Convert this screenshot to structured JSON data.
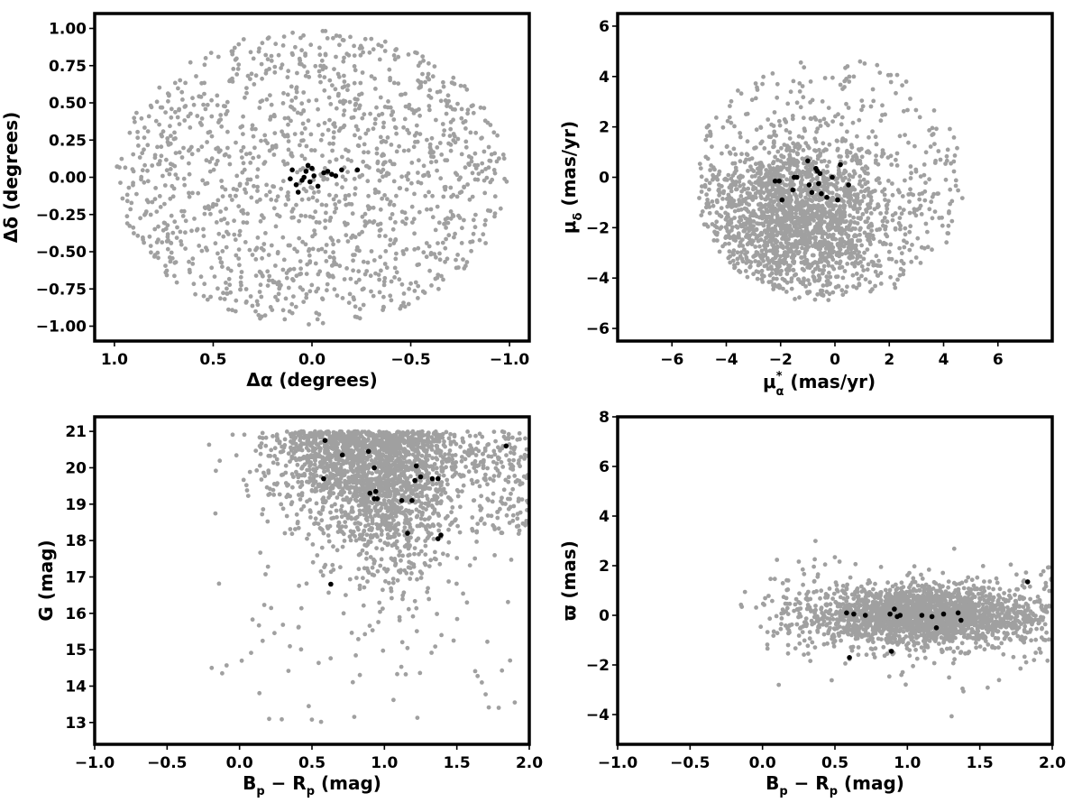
{
  "chart_data": [
    {
      "type": "scatter",
      "panel": "top-left",
      "xlabel": "Δα (degrees)",
      "ylabel": "Δδ (degrees)",
      "xlim": [
        1.1,
        -1.1
      ],
      "ylim": [
        -1.1,
        1.1
      ],
      "x_inverted": true,
      "xticks": [
        1.0,
        0.5,
        0.0,
        -0.5,
        -1.0
      ],
      "xtick_labels": [
        "1.0",
        "0.5",
        "0.0",
        "−0.5",
        "−1.0"
      ],
      "yticks": [
        1.0,
        0.75,
        0.5,
        0.25,
        0.0,
        -0.25,
        -0.5,
        -0.75,
        -1.0
      ],
      "ytick_labels": [
        "1.00",
        "0.75",
        "0.50",
        "0.25",
        "0.00",
        "−0.25",
        "−0.50",
        "−0.75",
        "−1.00"
      ],
      "grid": false,
      "series": [
        {
          "role": "field",
          "color": "#a0a0a0",
          "distribution": {
            "shape": "disk",
            "cx": 0.0,
            "cy": 0.0,
            "rx": 0.99,
            "ry": 0.99,
            "count": 1400,
            "seed": 11
          }
        },
        {
          "role": "members",
          "color": "#000000",
          "points": [
            [
              0.1,
              0.05
            ],
            [
              0.11,
              -0.01
            ],
            [
              0.08,
              -0.05
            ],
            [
              0.07,
              -0.1
            ],
            [
              0.05,
              -0.02
            ],
            [
              0.03,
              0.04
            ],
            [
              0.02,
              0.08
            ],
            [
              0.0,
              0.06
            ],
            [
              -0.01,
              0.01
            ],
            [
              0.01,
              -0.03
            ],
            [
              -0.03,
              -0.06
            ],
            [
              -0.06,
              0.03
            ],
            [
              -0.08,
              0.04
            ],
            [
              -0.1,
              0.02
            ],
            [
              -0.12,
              0.01
            ],
            [
              -0.15,
              0.05
            ],
            [
              -0.23,
              0.05
            ],
            [
              0.04,
              0.0
            ]
          ]
        }
      ]
    },
    {
      "type": "scatter",
      "panel": "top-right",
      "xlabel_main": "μ",
      "xlabel_sub": "α",
      "xlabel_sup": "*",
      "xlabel_unit": " (mas/yr)",
      "ylabel_main": "μ",
      "ylabel_sub": "δ",
      "ylabel_unit": " (mas/yr)",
      "xlim": [
        -8,
        8
      ],
      "ylim": [
        -6.5,
        6.5
      ],
      "xticks": [
        -6,
        -4,
        -2,
        0,
        2,
        4,
        6
      ],
      "xtick_labels": [
        "−6",
        "−4",
        "−2",
        "0",
        "2",
        "4",
        "6"
      ],
      "yticks": [
        -6,
        -4,
        -2,
        0,
        2,
        4,
        6
      ],
      "ytick_labels": [
        "−6",
        "−4",
        "−2",
        "0",
        "2",
        "4",
        "6"
      ],
      "grid": false,
      "series": [
        {
          "role": "field",
          "color": "#a0a0a0",
          "distribution": {
            "shape": "blob",
            "cx": -1.4,
            "cy": -1.6,
            "sx": 1.6,
            "sy": 1.5,
            "xmin": -5.0,
            "xmax": 4.8,
            "ymin": -4.9,
            "ymax": 4.6,
            "count": 2200,
            "seed": 23
          }
        },
        {
          "role": "members",
          "color": "#000000",
          "points": [
            [
              -2.2,
              -0.15
            ],
            [
              -2.05,
              -0.15
            ],
            [
              -1.95,
              -0.9
            ],
            [
              -1.5,
              0.0
            ],
            [
              -1.4,
              0.0
            ],
            [
              -1.55,
              -0.5
            ],
            [
              -1.0,
              0.65
            ],
            [
              -0.95,
              -0.3
            ],
            [
              -0.85,
              -0.6
            ],
            [
              -0.7,
              0.35
            ],
            [
              -0.6,
              -0.25
            ],
            [
              -0.55,
              0.15
            ],
            [
              -0.5,
              -0.65
            ],
            [
              -0.3,
              -0.8
            ],
            [
              -0.1,
              0.0
            ],
            [
              0.1,
              -0.9
            ],
            [
              0.2,
              0.5
            ],
            [
              0.5,
              -0.3
            ],
            [
              -0.65,
              0.25
            ]
          ]
        }
      ]
    },
    {
      "type": "scatter",
      "panel": "bottom-left",
      "xlabel_b": "B",
      "xlabel_bsub": "p",
      "xlabel_mid": " − R",
      "xlabel_rsub": "p",
      "xlabel_unit": " (mag)",
      "ylabel": "G (mag)",
      "xlim": [
        -1.0,
        2.0
      ],
      "ylim": [
        12.4,
        21.4
      ],
      "y_inverted": false,
      "xticks": [
        -1.0,
        -0.5,
        0.0,
        0.5,
        1.0,
        1.5,
        2.0
      ],
      "xtick_labels": [
        "−1.0",
        "−0.5",
        "0.0",
        "0.5",
        "1.0",
        "1.5",
        "2.0"
      ],
      "yticks": [
        13,
        14,
        15,
        16,
        17,
        18,
        19,
        20,
        21
      ],
      "ytick_labels": [
        "13",
        "14",
        "15",
        "16",
        "17",
        "18",
        "19",
        "20",
        "21"
      ],
      "grid": false,
      "series": [
        {
          "role": "field",
          "color": "#a0a0a0",
          "distribution": {
            "shape": "cmd",
            "count": 2400,
            "seed": 37
          }
        },
        {
          "role": "members",
          "color": "#000000",
          "points": [
            [
              0.59,
              20.75
            ],
            [
              0.71,
              20.35
            ],
            [
              0.89,
              20.45
            ],
            [
              0.93,
              20.0
            ],
            [
              1.22,
              20.05
            ],
            [
              1.25,
              19.75
            ],
            [
              1.33,
              19.7
            ],
            [
              1.37,
              19.7
            ],
            [
              0.58,
              19.7
            ],
            [
              0.9,
              19.3
            ],
            [
              0.94,
              19.35
            ],
            [
              0.93,
              19.15
            ],
            [
              0.95,
              19.15
            ],
            [
              1.12,
              19.1
            ],
            [
              1.19,
              19.1
            ],
            [
              1.21,
              19.65
            ],
            [
              1.16,
              18.2
            ],
            [
              1.37,
              18.05
            ],
            [
              1.39,
              18.15
            ],
            [
              0.63,
              16.8
            ],
            [
              1.84,
              20.6
            ]
          ]
        }
      ]
    },
    {
      "type": "scatter",
      "panel": "bottom-right",
      "xlabel_b": "B",
      "xlabel_bsub": "p",
      "xlabel_mid": " − R",
      "xlabel_rsub": "p",
      "xlabel_unit": " (mag)",
      "ylabel": "ϖ (mas)",
      "xlim": [
        -1.0,
        2.0
      ],
      "ylim": [
        -5.2,
        8.0
      ],
      "xticks": [
        -1.0,
        -0.5,
        0.0,
        0.5,
        1.0,
        1.5,
        2.0
      ],
      "xtick_labels": [
        "−1.0",
        "−0.5",
        "0.0",
        "0.5",
        "1.0",
        "1.5",
        "2.0"
      ],
      "yticks": [
        -4,
        -2,
        0,
        2,
        4,
        6,
        8
      ],
      "ytick_labels": [
        "−4",
        "−2",
        "0",
        "2",
        "4",
        "6",
        "8"
      ],
      "grid": false,
      "series": [
        {
          "role": "field",
          "color": "#a0a0a0",
          "distribution": {
            "shape": "band",
            "count": 2300,
            "seed": 53
          }
        },
        {
          "role": "members",
          "color": "#000000",
          "points": [
            [
              0.58,
              0.1
            ],
            [
              0.63,
              0.05
            ],
            [
              0.71,
              0.0
            ],
            [
              0.88,
              0.05
            ],
            [
              0.91,
              0.25
            ],
            [
              0.93,
              -0.05
            ],
            [
              0.95,
              0.0
            ],
            [
              1.1,
              0.0
            ],
            [
              1.17,
              -0.05
            ],
            [
              1.2,
              -0.5
            ],
            [
              1.25,
              0.05
            ],
            [
              1.35,
              0.1
            ],
            [
              1.37,
              -0.2
            ],
            [
              0.6,
              -1.7
            ],
            [
              0.89,
              -1.45
            ],
            [
              1.83,
              1.35
            ]
          ]
        }
      ]
    }
  ]
}
